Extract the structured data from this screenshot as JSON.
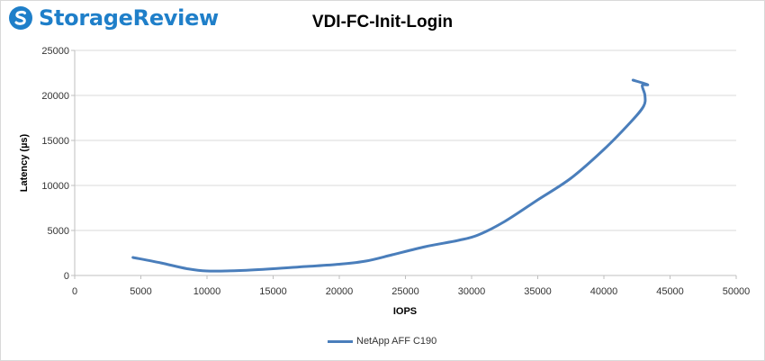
{
  "brand": {
    "name": "StorageReview",
    "logo_icon": "storagereview-logo-icon",
    "color": "#1f7fc9"
  },
  "chart_data": {
    "type": "line",
    "title": "VDI-FC-Init-Login",
    "xlabel": "IOPS",
    "ylabel": "Latency (µs)",
    "xlim": [
      0,
      50000
    ],
    "ylim": [
      0,
      25000
    ],
    "xticks": [
      0,
      5000,
      10000,
      15000,
      20000,
      25000,
      30000,
      35000,
      40000,
      45000,
      50000
    ],
    "yticks": [
      0,
      5000,
      10000,
      15000,
      20000,
      25000
    ],
    "grid": true,
    "legend_position": "bottom",
    "series": [
      {
        "name": "NetApp AFF C190",
        "color": "#4a7ebb",
        "points": [
          [
            4400,
            2000
          ],
          [
            6500,
            1400
          ],
          [
            8500,
            750
          ],
          [
            10000,
            500
          ],
          [
            12500,
            550
          ],
          [
            15000,
            750
          ],
          [
            17500,
            1000
          ],
          [
            20000,
            1250
          ],
          [
            22000,
            1600
          ],
          [
            24000,
            2300
          ],
          [
            26500,
            3200
          ],
          [
            29000,
            3900
          ],
          [
            30500,
            4500
          ],
          [
            32500,
            6000
          ],
          [
            35000,
            8400
          ],
          [
            37500,
            10800
          ],
          [
            40000,
            14000
          ],
          [
            42000,
            17000
          ],
          [
            43000,
            18800
          ],
          [
            43100,
            20000
          ],
          [
            42900,
            21100
          ],
          [
            43300,
            21200
          ],
          [
            42200,
            21700
          ]
        ]
      }
    ]
  }
}
